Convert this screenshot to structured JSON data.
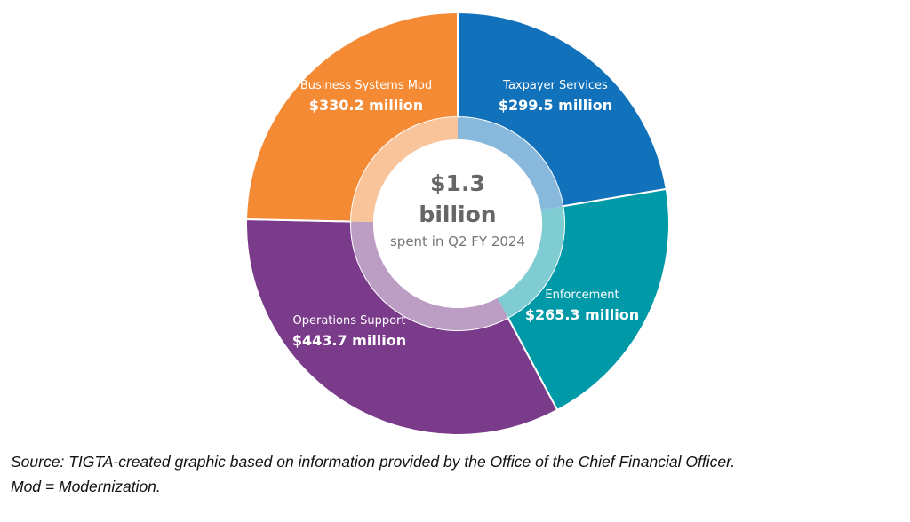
{
  "chart_data": {
    "type": "pie",
    "variant": "donut",
    "start": "top",
    "direction": "clockwise",
    "center_label": {
      "value": "$1.3",
      "unit": "billion",
      "caption": "spent in Q2 FY 2024"
    },
    "slices": [
      {
        "name": "Taxpayer Services",
        "value": 299.5,
        "label": "$299.5 million",
        "color": "#1171BA",
        "inner_color": "#88B8DC"
      },
      {
        "name": "Enforcement",
        "value": 265.3,
        "label": "$265.3 million",
        "color": "#0099A8",
        "inner_color": "#80CCD3"
      },
      {
        "name": "Operations Support",
        "value": 443.7,
        "label": "$443.7 million",
        "color": "#7A3B8A",
        "inner_color": "#BC9DC4"
      },
      {
        "name": "Business Systems Mod",
        "value": 330.2,
        "label": "$330.2 million",
        "color": "#F58A35",
        "inner_color": "#FAC49A"
      }
    ],
    "units": "million USD"
  },
  "source": {
    "line1": "Source:  TIGTA-created graphic based on information provided by the Office of the Chief Financial Officer.",
    "line2": "Mod = Modernization."
  }
}
